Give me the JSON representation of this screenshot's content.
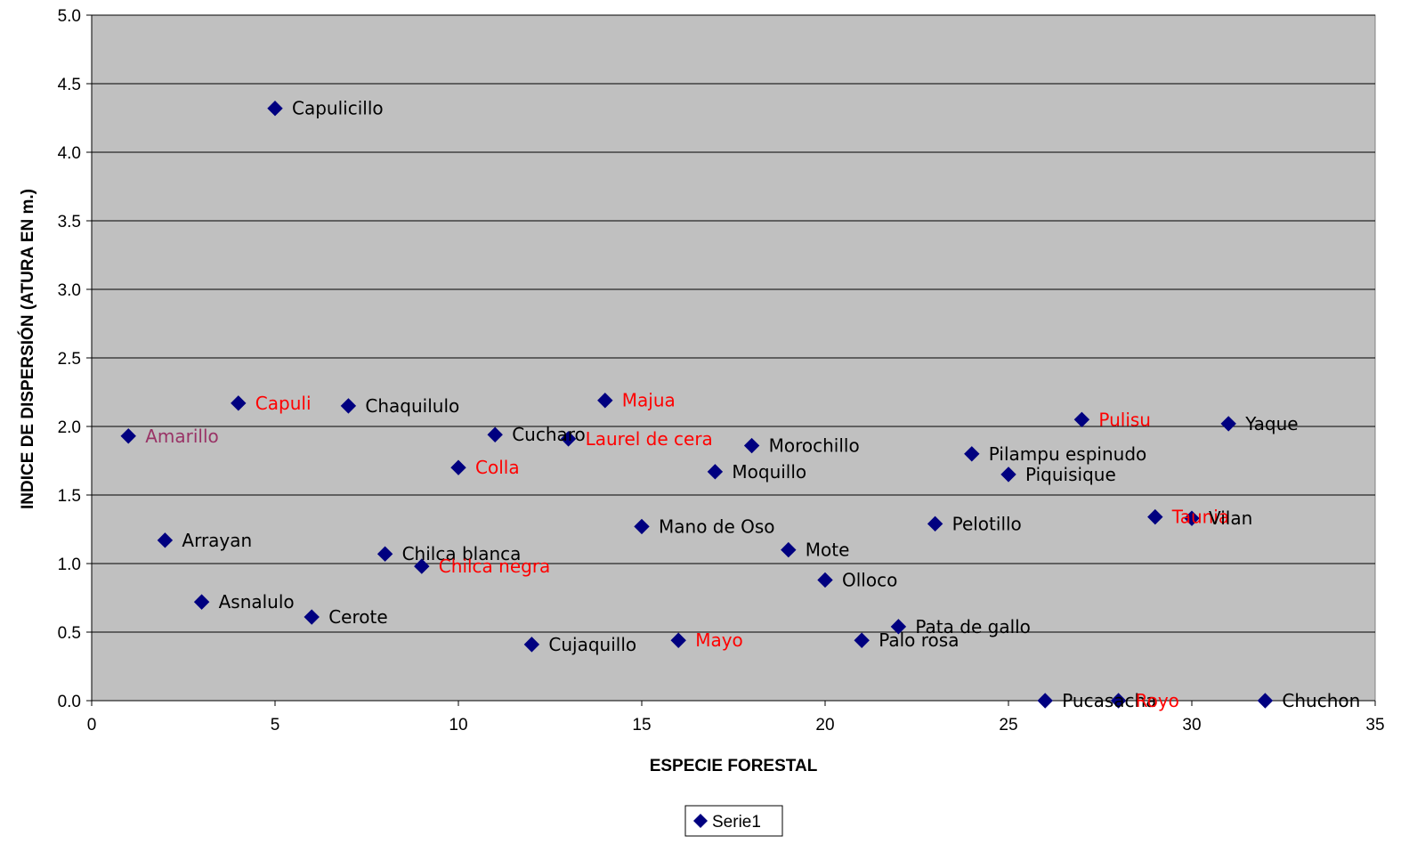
{
  "chart_data": {
    "type": "scatter",
    "xlabel": "ESPECIE FORESTAL",
    "ylabel": "INDICE DE DISPERSIÓN (ATURA EN m.)",
    "xlim": [
      0,
      35
    ],
    "ylim": [
      0,
      5
    ],
    "xticks": [
      "0",
      "5",
      "10",
      "15",
      "20",
      "25",
      "30",
      "35"
    ],
    "yticks": [
      "0.0",
      "0.5",
      "1.0",
      "1.5",
      "2.0",
      "2.5",
      "3.0",
      "3.5",
      "4.0",
      "4.5",
      "5.0"
    ],
    "grid": "horizontal",
    "legend_position": "bottom",
    "plot_background": "#C0C0C0",
    "marker_color": "#000080",
    "series": [
      {
        "name": "Serie1",
        "points": [
          {
            "x": 1,
            "y": 1.93,
            "label": "Amarillo",
            "label_color": "#993366"
          },
          {
            "x": 2,
            "y": 1.17,
            "label": "Arrayan",
            "label_color": "#000000"
          },
          {
            "x": 3,
            "y": 0.72,
            "label": "Asnalulo",
            "label_color": "#000000"
          },
          {
            "x": 4,
            "y": 2.17,
            "label": "Capuli",
            "label_color": "#FF0000"
          },
          {
            "x": 5,
            "y": 4.32,
            "label": "Capulicillo",
            "label_color": "#000000"
          },
          {
            "x": 6,
            "y": 0.61,
            "label": "Cerote",
            "label_color": "#000000"
          },
          {
            "x": 7,
            "y": 2.15,
            "label": "Chaquilulo",
            "label_color": "#000000"
          },
          {
            "x": 8,
            "y": 1.07,
            "label": "Chilca blanca",
            "label_color": "#000000"
          },
          {
            "x": 9,
            "y": 0.98,
            "label": "Chilca negra",
            "label_color": "#FF0000"
          },
          {
            "x": 10,
            "y": 1.7,
            "label": "Colla",
            "label_color": "#FF0000"
          },
          {
            "x": 11,
            "y": 1.94,
            "label": "Cucharo",
            "label_color": "#000000"
          },
          {
            "x": 12,
            "y": 0.41,
            "label": "Cujaquillo",
            "label_color": "#000000"
          },
          {
            "x": 13,
            "y": 1.91,
            "label": "Laurel de cera",
            "label_color": "#FF0000"
          },
          {
            "x": 14,
            "y": 2.19,
            "label": "Majua",
            "label_color": "#FF0000"
          },
          {
            "x": 15,
            "y": 1.27,
            "label": "Mano de Oso",
            "label_color": "#000000"
          },
          {
            "x": 16,
            "y": 0.44,
            "label": "Mayo",
            "label_color": "#FF0000"
          },
          {
            "x": 17,
            "y": 1.67,
            "label": "Moquillo",
            "label_color": "#000000"
          },
          {
            "x": 18,
            "y": 1.86,
            "label": "Morochillo",
            "label_color": "#000000"
          },
          {
            "x": 19,
            "y": 1.1,
            "label": "Mote",
            "label_color": "#000000"
          },
          {
            "x": 20,
            "y": 0.88,
            "label": "Olloco",
            "label_color": "#000000"
          },
          {
            "x": 21,
            "y": 0.44,
            "label": "Palo rosa",
            "label_color": "#000000"
          },
          {
            "x": 22,
            "y": 0.54,
            "label": "Pata de gallo",
            "label_color": "#000000"
          },
          {
            "x": 23,
            "y": 1.29,
            "label": "Pelotillo",
            "label_color": "#000000"
          },
          {
            "x": 24,
            "y": 1.8,
            "label": "Pilampu espinudo",
            "label_color": "#000000"
          },
          {
            "x": 25,
            "y": 1.65,
            "label": "Piquisique",
            "label_color": "#000000"
          },
          {
            "x": 26,
            "y": 0.0,
            "label": "Pucasacha",
            "label_color": "#000000"
          },
          {
            "x": 27,
            "y": 2.05,
            "label": "Pulisu",
            "label_color": "#FF0000"
          },
          {
            "x": 28,
            "y": 0.0,
            "label": "Royo",
            "label_color": "#FF0000"
          },
          {
            "x": 29,
            "y": 1.34,
            "label": "Taunia",
            "label_color": "#FF0000"
          },
          {
            "x": 30,
            "y": 1.33,
            "label": "Vilan",
            "label_color": "#000000"
          },
          {
            "x": 31,
            "y": 2.02,
            "label": "Yaque",
            "label_color": "#000000"
          },
          {
            "x": 32,
            "y": 0.0,
            "label": "Chuchon",
            "label_color": "#000000"
          }
        ]
      }
    ]
  }
}
